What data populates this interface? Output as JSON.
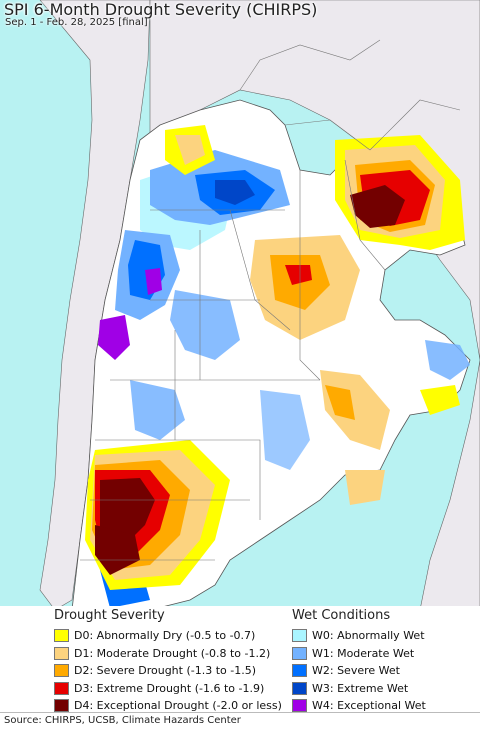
{
  "map": {
    "title": "SPI 6-Month Drought Severity (CHIRPS)",
    "subtitle": "Sep. 1 - Feb. 28, 2025 [final]"
  },
  "legend": {
    "drought": {
      "heading": "Drought Severity",
      "items": [
        {
          "label": "D0: Abnormally Dry (-0.5 to -0.7)",
          "color": "#ffff00"
        },
        {
          "label": "D1: Moderate Drought (-0.8 to -1.2)",
          "color": "#fcd37f"
        },
        {
          "label": "D2: Severe Drought (-1.3 to -1.5)",
          "color": "#ffaa00"
        },
        {
          "label": "D3: Extreme Drought (-1.6 to -1.9)",
          "color": "#e60000"
        },
        {
          "label": "D4: Exceptional Drought (-2.0 or less)",
          "color": "#730000"
        }
      ]
    },
    "wet": {
      "heading": "Wet Conditions",
      "items": [
        {
          "label": "W0: Abnormally Wet",
          "color": "#aaf5ff"
        },
        {
          "label": "W1: Moderate Wet",
          "color": "#73b2ff"
        },
        {
          "label": "W2: Severe Wet",
          "color": "#0070ff"
        },
        {
          "label": "W3: Extreme Wet",
          "color": "#0046c8"
        },
        {
          "label": "W4: Exceptional Wet",
          "color": "#a000e6"
        }
      ]
    }
  },
  "footer": {
    "source": "Source: CHIRPS, UCSB, Climate Hazards Center"
  }
}
